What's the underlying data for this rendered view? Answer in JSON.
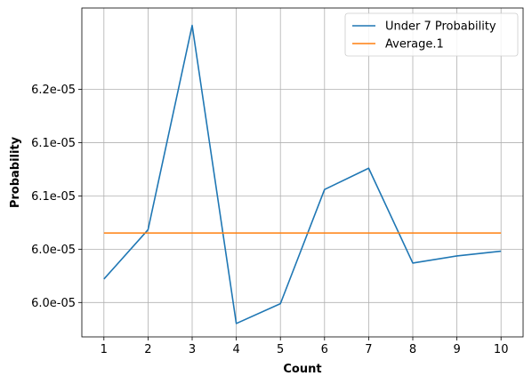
{
  "chart_data": {
    "type": "line",
    "x": [
      1,
      2,
      3,
      4,
      5,
      6,
      7,
      8,
      9,
      10
    ],
    "series": [
      {
        "name": " Under 7 Probability",
        "color": "#1f77b4",
        "values": [
          5.972e-05,
          6.0183e-05,
          6.21e-05,
          5.9303e-05,
          5.9489e-05,
          6.056e-05,
          6.076e-05,
          5.987e-05,
          5.9937e-05,
          5.9982e-05
        ]
      },
      {
        "name": "Average.1",
        "color": "#ff7f0e",
        "values": [
          6.0152e-05,
          6.0152e-05,
          6.0152e-05,
          6.0152e-05,
          6.0152e-05,
          6.0152e-05,
          6.0152e-05,
          6.0152e-05,
          6.0152e-05,
          6.0152e-05
        ]
      }
    ],
    "xlabel": "Count",
    "ylabel": "Probability",
    "xlim": [
      0.5,
      10.5
    ],
    "ylim": [
      5.91773e-05,
      6.22632e-05
    ],
    "x_ticks": [
      1,
      2,
      3,
      4,
      5,
      6,
      7,
      8,
      9,
      10
    ],
    "y_ticks": [
      {
        "value": 5.95e-05,
        "label": "6.0e-05"
      },
      {
        "value": 6e-05,
        "label": "6.0e-05"
      },
      {
        "value": 6.05e-05,
        "label": "6.1e-05"
      },
      {
        "value": 6.1e-05,
        "label": "6.1e-05"
      },
      {
        "value": 6.15e-05,
        "label": "6.2e-05"
      }
    ],
    "grid": true,
    "legend_position": "top-right"
  }
}
